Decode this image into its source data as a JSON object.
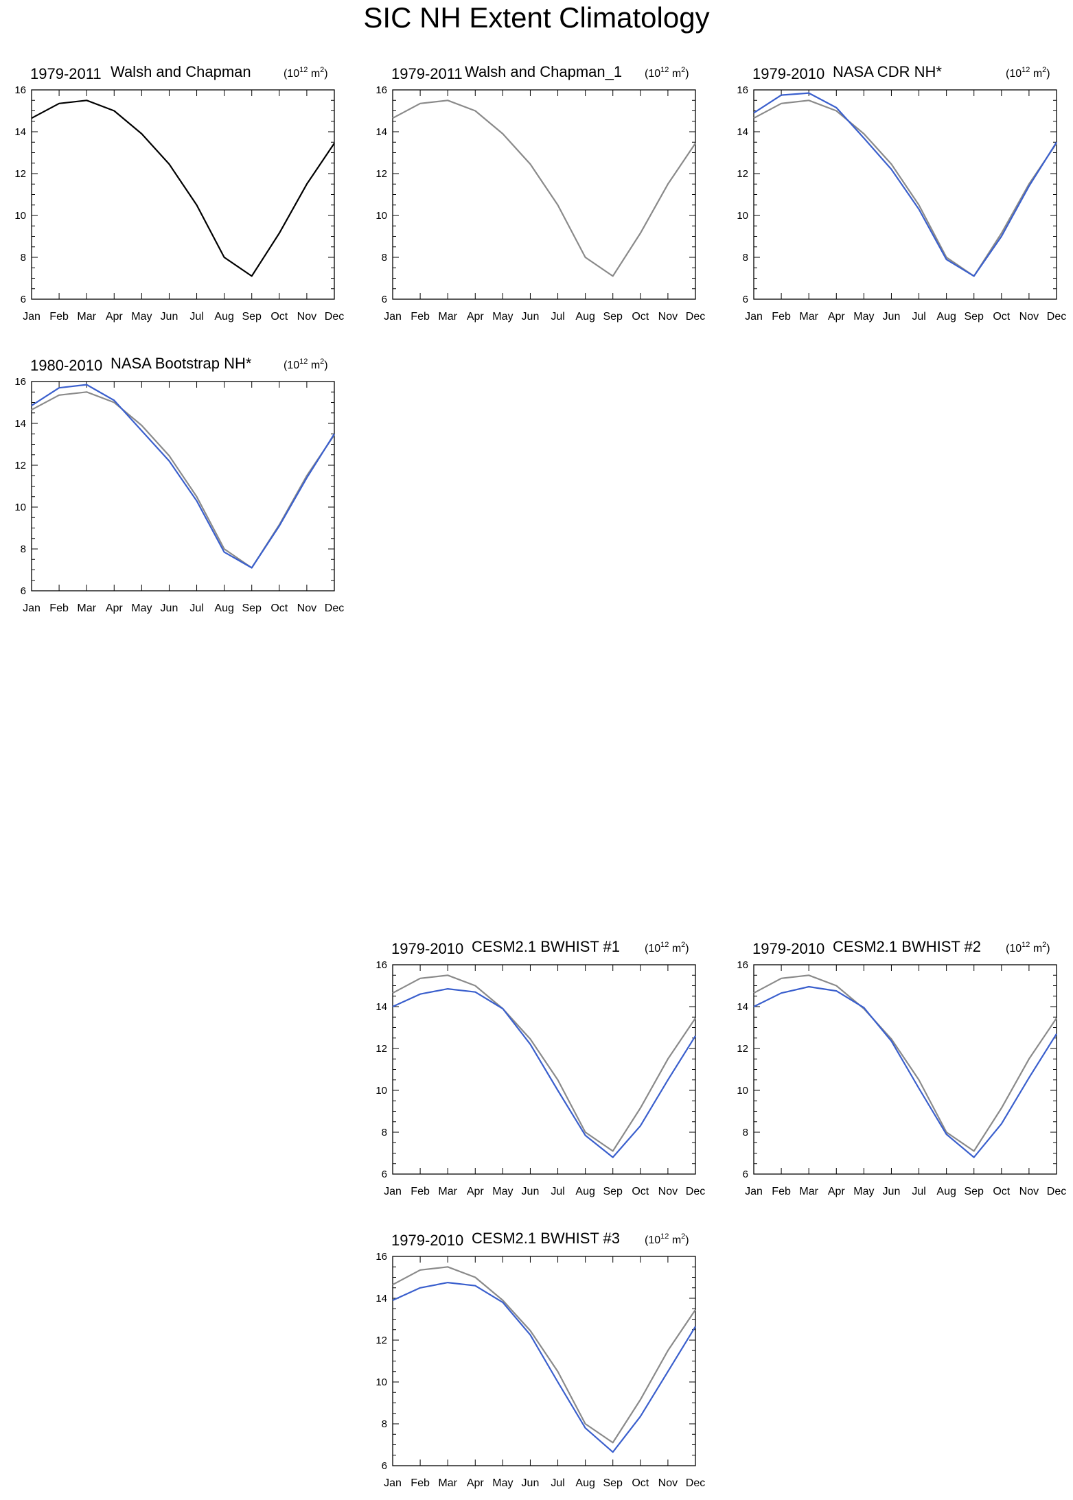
{
  "title": "SIC NH Extent Climatology",
  "units_label": {
    "base": "(10",
    "exp": "12",
    "unit": " m",
    "unit_exp": "2",
    "close": ")"
  },
  "colors": {
    "observed": "#000000",
    "reference": "#8a8a8a",
    "model": "#3a5fcd"
  },
  "chart_data": [
    {
      "type": "line",
      "period": "1979-2011",
      "label": "Walsh and Chapman",
      "categories": [
        "Jan",
        "Feb",
        "Mar",
        "Apr",
        "May",
        "Jun",
        "Jul",
        "Aug",
        "Sep",
        "Oct",
        "Nov",
        "Dec"
      ],
      "ylim": [
        6,
        16
      ],
      "yticks": [
        6,
        8,
        10,
        12,
        14,
        16
      ],
      "series": [
        {
          "color": "#000000",
          "values": [
            14.65,
            15.35,
            15.5,
            15.0,
            13.9,
            12.45,
            10.5,
            8.0,
            7.1,
            9.15,
            11.5,
            13.45
          ]
        }
      ]
    },
    {
      "type": "line",
      "period": "1979-2011",
      "label": "Walsh and Chapman_1",
      "categories": [
        "Jan",
        "Feb",
        "Mar",
        "Apr",
        "May",
        "Jun",
        "Jul",
        "Aug",
        "Sep",
        "Oct",
        "Nov",
        "Dec"
      ],
      "ylim": [
        6,
        16
      ],
      "yticks": [
        6,
        8,
        10,
        12,
        14,
        16
      ],
      "series": [
        {
          "color": "#8a8a8a",
          "values": [
            14.65,
            15.35,
            15.5,
            15.0,
            13.9,
            12.45,
            10.5,
            8.0,
            7.1,
            9.15,
            11.5,
            13.45
          ]
        }
      ]
    },
    {
      "type": "line",
      "period": "1979-2010",
      "label": "NASA CDR NH*",
      "categories": [
        "Jan",
        "Feb",
        "Mar",
        "Apr",
        "May",
        "Jun",
        "Jul",
        "Aug",
        "Sep",
        "Oct",
        "Nov",
        "Dec"
      ],
      "ylim": [
        6,
        16
      ],
      "yticks": [
        6,
        8,
        10,
        12,
        14,
        16
      ],
      "series": [
        {
          "color": "#8a8a8a",
          "values": [
            14.65,
            15.35,
            15.5,
            15.0,
            13.9,
            12.45,
            10.5,
            8.0,
            7.1,
            9.15,
            11.5,
            13.45
          ]
        },
        {
          "color": "#3a5fcd",
          "values": [
            14.9,
            15.75,
            15.85,
            15.15,
            13.7,
            12.2,
            10.3,
            7.9,
            7.1,
            9.0,
            11.4,
            13.5
          ]
        }
      ]
    },
    {
      "type": "line",
      "period": "1980-2010",
      "label": "NASA Bootstrap NH*",
      "categories": [
        "Jan",
        "Feb",
        "Mar",
        "Apr",
        "May",
        "Jun",
        "Jul",
        "Aug",
        "Sep",
        "Oct",
        "Nov",
        "Dec"
      ],
      "ylim": [
        6,
        16
      ],
      "yticks": [
        6,
        8,
        10,
        12,
        14,
        16
      ],
      "series": [
        {
          "color": "#8a8a8a",
          "values": [
            14.65,
            15.35,
            15.5,
            15.0,
            13.9,
            12.45,
            10.5,
            8.0,
            7.1,
            9.15,
            11.5,
            13.45
          ]
        },
        {
          "color": "#3a5fcd",
          "values": [
            14.85,
            15.7,
            15.85,
            15.1,
            13.65,
            12.2,
            10.3,
            7.85,
            7.1,
            9.1,
            11.4,
            13.5
          ]
        }
      ]
    },
    {
      "type": "line",
      "period": "1979-2010",
      "label": "CESM2.1 BWHIST #1",
      "categories": [
        "Jan",
        "Feb",
        "Mar",
        "Apr",
        "May",
        "Jun",
        "Jul",
        "Aug",
        "Sep",
        "Oct",
        "Nov",
        "Dec"
      ],
      "ylim": [
        6,
        16
      ],
      "yticks": [
        6,
        8,
        10,
        12,
        14,
        16
      ],
      "series": [
        {
          "color": "#8a8a8a",
          "values": [
            14.65,
            15.35,
            15.5,
            15.0,
            13.9,
            12.45,
            10.5,
            8.0,
            7.1,
            9.15,
            11.5,
            13.45
          ]
        },
        {
          "color": "#3a5fcd",
          "values": [
            14.0,
            14.6,
            14.85,
            14.7,
            13.9,
            12.2,
            10.0,
            7.85,
            6.8,
            8.3,
            10.5,
            12.6
          ]
        }
      ]
    },
    {
      "type": "line",
      "period": "1979-2010",
      "label": "CESM2.1 BWHIST #2",
      "categories": [
        "Jan",
        "Feb",
        "Mar",
        "Apr",
        "May",
        "Jun",
        "Jul",
        "Aug",
        "Sep",
        "Oct",
        "Nov",
        "Dec"
      ],
      "ylim": [
        6,
        16
      ],
      "yticks": [
        6,
        8,
        10,
        12,
        14,
        16
      ],
      "series": [
        {
          "color": "#8a8a8a",
          "values": [
            14.65,
            15.35,
            15.5,
            15.0,
            13.9,
            12.45,
            10.5,
            8.0,
            7.1,
            9.15,
            11.5,
            13.45
          ]
        },
        {
          "color": "#3a5fcd",
          "values": [
            14.0,
            14.65,
            14.95,
            14.75,
            13.95,
            12.35,
            10.1,
            7.9,
            6.8,
            8.4,
            10.6,
            12.7
          ]
        }
      ]
    },
    {
      "type": "line",
      "period": "1979-2010",
      "label": "CESM2.1 BWHIST #3",
      "categories": [
        "Jan",
        "Feb",
        "Mar",
        "Apr",
        "May",
        "Jun",
        "Jul",
        "Aug",
        "Sep",
        "Oct",
        "Nov",
        "Dec"
      ],
      "ylim": [
        6,
        16
      ],
      "yticks": [
        6,
        8,
        10,
        12,
        14,
        16
      ],
      "series": [
        {
          "color": "#8a8a8a",
          "values": [
            14.65,
            15.35,
            15.5,
            15.0,
            13.9,
            12.45,
            10.5,
            8.0,
            7.1,
            9.15,
            11.5,
            13.45
          ]
        },
        {
          "color": "#3a5fcd",
          "values": [
            13.9,
            14.5,
            14.75,
            14.6,
            13.8,
            12.25,
            10.0,
            7.8,
            6.65,
            8.35,
            10.5,
            12.65
          ]
        }
      ]
    }
  ]
}
